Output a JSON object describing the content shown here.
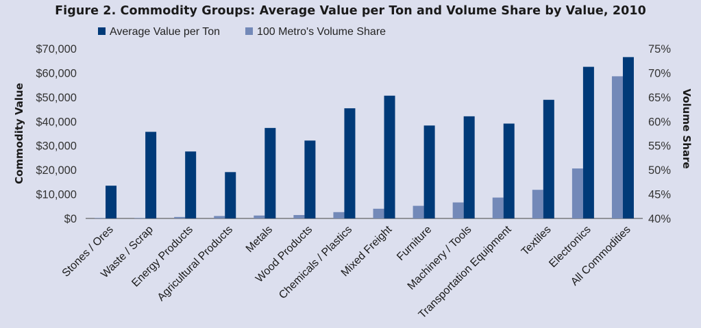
{
  "chart_data": {
    "type": "bar",
    "title": "Figure 2. Commodity Groups: Average Value per Ton and Volume Share by Value, 2010",
    "ylabel": "Commodity Value",
    "y2label": "Volume Share",
    "ylim": [
      0,
      70000
    ],
    "y2lim": [
      40,
      75
    ],
    "y_ticks": [
      "$0",
      "$10,000",
      "$20,000",
      "$30,000",
      "$40,000",
      "$50,000",
      "$60,000",
      "$70,000"
    ],
    "y2_ticks": [
      "40%",
      "45%",
      "50%",
      "55%",
      "60%",
      "65%",
      "70%",
      "75%"
    ],
    "categories": [
      "Stones / Ores",
      "Waste / Scrap",
      "Energy Products",
      "Agricultural Products",
      "Metals",
      "Wood Products",
      "Chemicals / Plastics",
      "Mixed Freight",
      "Furniture",
      "Machinery / Tools",
      "Transportation Equipment",
      "Textiles",
      "Electronics",
      "All Commodities"
    ],
    "series": [
      {
        "name": "Average Value per Ton",
        "axis": "left",
        "color": "#003a78",
        "values": [
          13500,
          35700,
          27600,
          19100,
          37300,
          32100,
          45400,
          50600,
          38300,
          42100,
          39100,
          48900,
          62500,
          66500
        ]
      },
      {
        "name": "100 Metro's Volume Share",
        "axis": "right",
        "color": "#7389b8",
        "values": [
          40.1,
          40.1,
          40.3,
          40.5,
          40.6,
          40.7,
          41.3,
          42.0,
          42.6,
          43.3,
          44.3,
          45.9,
          50.3,
          69.3
        ]
      }
    ],
    "legend_position": "top-left",
    "grid": false
  }
}
